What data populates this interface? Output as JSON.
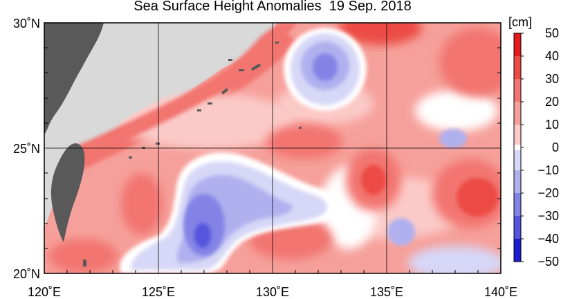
{
  "title": "Sea Surface Height Anomalies",
  "date": "19 Sep. 2018",
  "unit": "[cm]",
  "map": {
    "lon_range": [
      120,
      140
    ],
    "lat_range": [
      20,
      30
    ],
    "lon_labels": [
      "120˚E",
      "125˚E",
      "130˚E",
      "135˚E",
      "140˚E"
    ],
    "lat_labels": [
      "30˚N",
      "25˚N",
      "20˚N"
    ],
    "land_color": "#595959",
    "no_data_color": "#d9d9d9"
  },
  "colorbar": {
    "levels": [
      "50",
      "40",
      "30",
      "20",
      "10",
      "0",
      "−10",
      "−20",
      "−30",
      "−40",
      "−50"
    ],
    "colors": [
      "#e51b1b",
      "#ec4b44",
      "#f27470",
      "#f6a09b",
      "#fbcac7",
      "#ffffff",
      "#d7d7f7",
      "#b0b0ef",
      "#8383e6",
      "#5454dd",
      "#1b1bd4"
    ]
  }
}
